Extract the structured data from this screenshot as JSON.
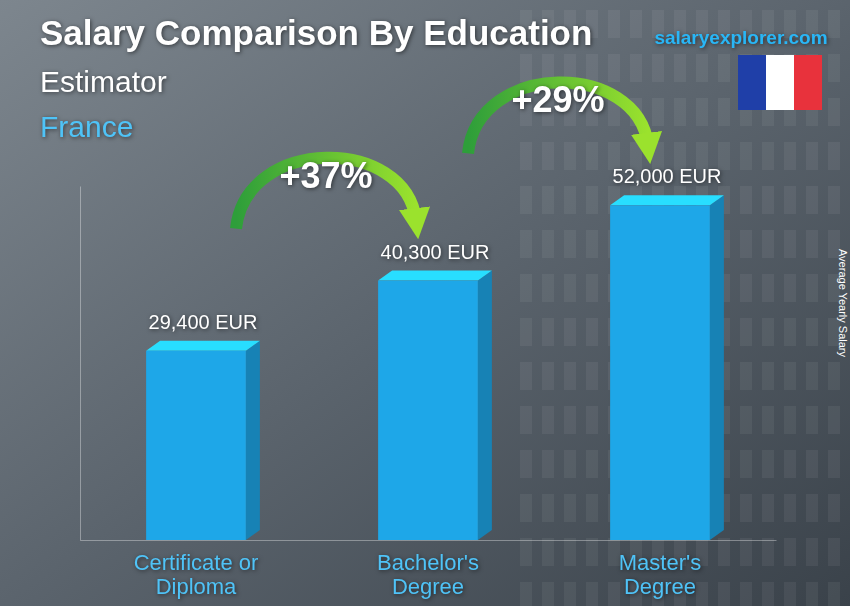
{
  "chart_data": {
    "type": "bar",
    "title": "Salary Comparison By Education",
    "job": "Estimator",
    "country": "France",
    "source": "salaryexplorer.com",
    "y_label": "Average Yearly Salary",
    "categories": [
      "Certificate or Diploma",
      "Bachelor's Degree",
      "Master's Degree"
    ],
    "values": [
      29400,
      40300,
      52000
    ],
    "value_labels": [
      "29,400 EUR",
      "40,300 EUR",
      "52,000 EUR"
    ],
    "annotations": [
      "+37%",
      "+29%"
    ],
    "color": "#1ea7e8",
    "ylim": [
      0,
      55000
    ],
    "data_labels": true,
    "tick_labels": "x",
    "grid": false
  }
}
